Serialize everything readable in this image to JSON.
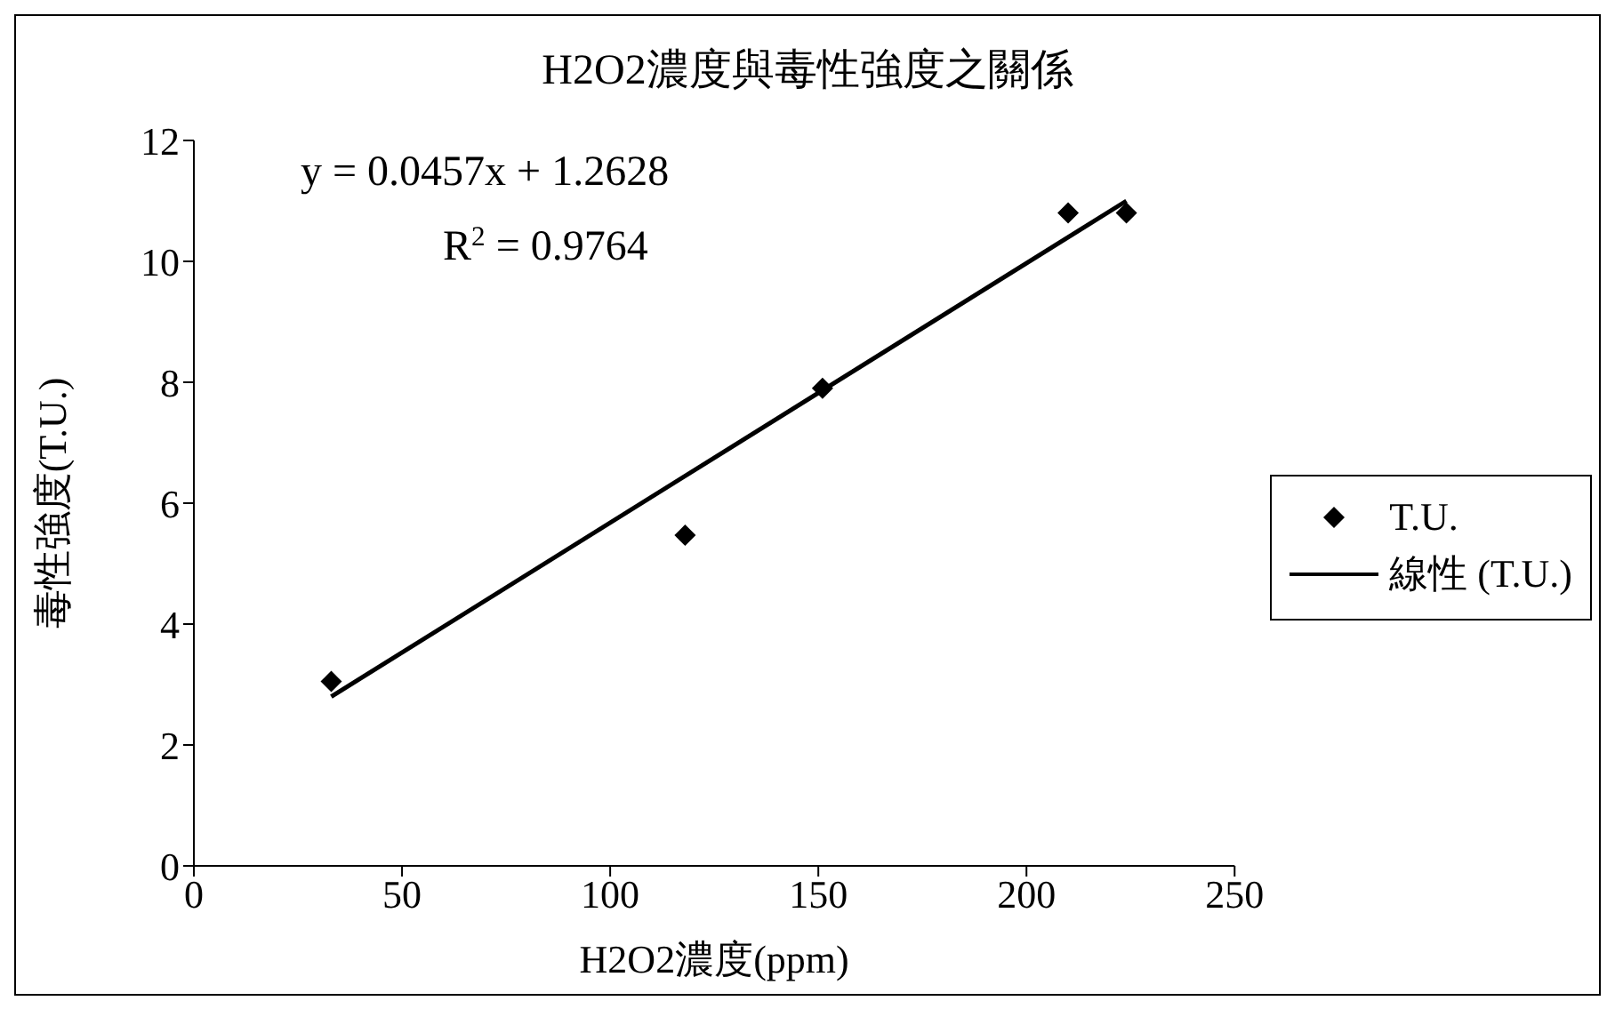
{
  "chart_data": {
    "type": "scatter",
    "title": "H2O2濃度與毒性強度之關係",
    "xlabel": "H2O2濃度(ppm)",
    "ylabel": "毒性強度(T.U.)",
    "xlim": [
      0,
      250
    ],
    "xticks": [
      0,
      50,
      100,
      150,
      200,
      250
    ],
    "ylim": [
      0,
      12
    ],
    "yticks": [
      0,
      2,
      4,
      6,
      8,
      10,
      12
    ],
    "grid": false,
    "legend": "right",
    "marker": "diamond",
    "annotations": [
      "y = 0.0457x + 1.2628",
      "R$^{2}$ = 0.9764"
    ],
    "series": [
      {
        "name": "T.U.",
        "color": "#000000",
        "x": [
          33,
          118,
          151,
          210,
          224
        ],
        "values": [
          3.05,
          5.47,
          7.9,
          10.8,
          10.8
        ]
      },
      {
        "name": "線性 (T.U.)",
        "type": "line",
        "color": "#000000",
        "marker": "none",
        "line_style": "solid",
        "x": [
          33,
          224
        ],
        "values": [
          2.8,
          11.0
        ]
      }
    ]
  }
}
